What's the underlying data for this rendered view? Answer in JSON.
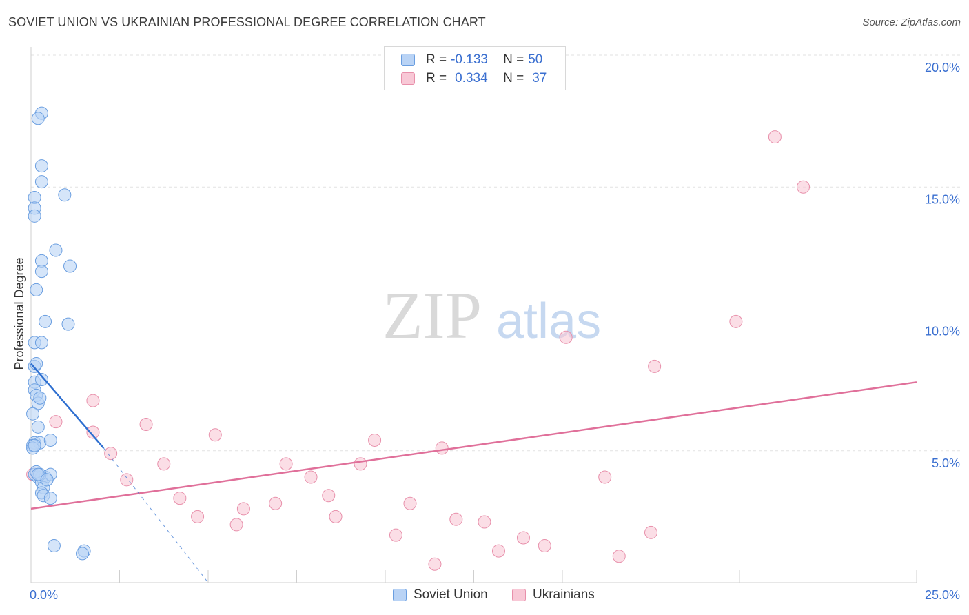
{
  "header": {
    "title": "SOVIET UNION VS UKRAINIAN PROFESSIONAL DEGREE CORRELATION CHART",
    "source": "Source: ZipAtlas.com"
  },
  "legend": {
    "r_label": "R =",
    "n_label": "N =",
    "rows": [
      {
        "name": "Soviet Union",
        "r": "-0.133",
        "n": "50"
      },
      {
        "name": "Ukrainians",
        "r": "0.334",
        "n": "37"
      }
    ]
  },
  "watermark": {
    "part1": "ZIP",
    "part2": "atlas"
  },
  "colors": {
    "soviet_fill": "#b9d3f5",
    "soviet_stroke": "#6a9ee0",
    "soviet_line": "#2e6fd0",
    "ukr_fill": "#f8c8d6",
    "ukr_stroke": "#e890ab",
    "ukr_line": "#e0709a",
    "axis_text": "#3a6fd0",
    "grid": "#e2e2e2"
  },
  "chart_data": {
    "type": "scatter",
    "title": "SOVIET UNION VS UKRAINIAN PROFESSIONAL DEGREE CORRELATION CHART",
    "xlabel": "",
    "ylabel": "Professional Degree",
    "xlim": [
      0,
      25
    ],
    "ylim": [
      0,
      20
    ],
    "x_tick_labels": [
      "0.0%",
      "25.0%"
    ],
    "y_ticks": [
      5,
      10,
      15,
      20
    ],
    "y_tick_labels": [
      "5.0%",
      "10.0%",
      "15.0%",
      "20.0%"
    ],
    "series": [
      {
        "name": "Soviet Union",
        "points": [
          [
            0.3,
            17.8
          ],
          [
            0.2,
            17.6
          ],
          [
            0.3,
            15.8
          ],
          [
            0.3,
            15.2
          ],
          [
            0.1,
            14.6
          ],
          [
            0.1,
            14.2
          ],
          [
            0.1,
            13.9
          ],
          [
            0.95,
            14.7
          ],
          [
            0.7,
            12.6
          ],
          [
            0.3,
            12.2
          ],
          [
            0.3,
            11.8
          ],
          [
            1.1,
            12.0
          ],
          [
            0.15,
            11.1
          ],
          [
            0.4,
            9.9
          ],
          [
            1.05,
            9.8
          ],
          [
            0.1,
            9.1
          ],
          [
            0.3,
            9.1
          ],
          [
            0.1,
            8.2
          ],
          [
            0.15,
            8.3
          ],
          [
            0.1,
            7.6
          ],
          [
            0.3,
            7.7
          ],
          [
            0.1,
            7.3
          ],
          [
            0.15,
            7.1
          ],
          [
            0.2,
            6.8
          ],
          [
            0.25,
            7.0
          ],
          [
            0.05,
            6.4
          ],
          [
            0.2,
            5.9
          ],
          [
            0.1,
            5.3
          ],
          [
            0.25,
            5.3
          ],
          [
            0.55,
            5.4
          ],
          [
            0.05,
            5.2
          ],
          [
            0.05,
            5.1
          ],
          [
            0.1,
            4.1
          ],
          [
            0.2,
            4.0
          ],
          [
            0.3,
            4.0
          ],
          [
            0.4,
            4.0
          ],
          [
            0.55,
            4.1
          ],
          [
            0.3,
            3.8
          ],
          [
            0.35,
            3.6
          ],
          [
            0.3,
            3.4
          ],
          [
            0.35,
            3.3
          ],
          [
            0.55,
            3.2
          ],
          [
            0.15,
            4.2
          ],
          [
            0.25,
            4.1
          ],
          [
            0.65,
            1.4
          ],
          [
            1.5,
            1.2
          ],
          [
            1.45,
            1.1
          ],
          [
            0.1,
            5.2
          ],
          [
            0.2,
            4.1
          ],
          [
            0.45,
            3.9
          ]
        ],
        "trendline": {
          "x": [
            0,
            2.05
          ],
          "y": [
            8.3,
            5.1
          ],
          "dashed_extension": {
            "x": [
              2.05,
              5.0
            ],
            "y": [
              5.1,
              0.0
            ]
          }
        }
      },
      {
        "name": "Ukrainians",
        "points": [
          [
            21.0,
            16.9
          ],
          [
            21.8,
            15.0
          ],
          [
            19.9,
            9.9
          ],
          [
            15.1,
            9.3
          ],
          [
            17.6,
            8.2
          ],
          [
            1.75,
            6.9
          ],
          [
            0.7,
            6.1
          ],
          [
            3.25,
            6.0
          ],
          [
            1.75,
            5.7
          ],
          [
            5.2,
            5.6
          ],
          [
            9.7,
            5.4
          ],
          [
            11.6,
            5.1
          ],
          [
            2.25,
            4.9
          ],
          [
            3.75,
            4.5
          ],
          [
            7.2,
            4.5
          ],
          [
            9.3,
            4.5
          ],
          [
            0.05,
            4.1
          ],
          [
            2.7,
            3.9
          ],
          [
            7.9,
            4.0
          ],
          [
            16.2,
            4.0
          ],
          [
            8.4,
            3.3
          ],
          [
            4.2,
            3.2
          ],
          [
            6.9,
            3.0
          ],
          [
            10.7,
            3.0
          ],
          [
            6.0,
            2.8
          ],
          [
            4.7,
            2.5
          ],
          [
            8.6,
            2.5
          ],
          [
            5.8,
            2.2
          ],
          [
            12.0,
            2.4
          ],
          [
            12.8,
            2.3
          ],
          [
            10.3,
            1.8
          ],
          [
            17.5,
            1.9
          ],
          [
            13.9,
            1.7
          ],
          [
            13.2,
            1.2
          ],
          [
            14.5,
            1.4
          ],
          [
            11.4,
            0.7
          ],
          [
            16.6,
            1.0
          ]
        ],
        "trendline": {
          "x": [
            0,
            25
          ],
          "y": [
            2.8,
            7.6
          ]
        }
      }
    ]
  }
}
